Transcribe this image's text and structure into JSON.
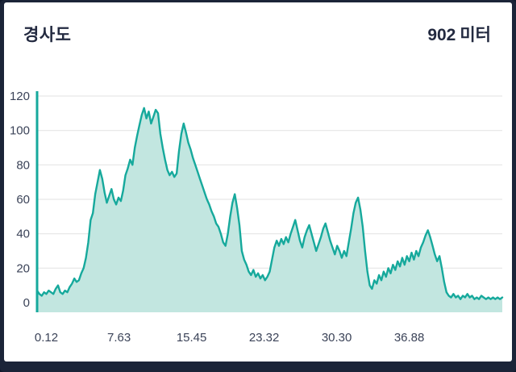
{
  "frame": {
    "border_color": "#1b2438",
    "card_background": "#ffffff"
  },
  "header": {
    "title": "경사도",
    "value": "902",
    "unit": "미터"
  },
  "chart_data": {
    "type": "area",
    "title": "경사도 (slope/elevation profile)",
    "xlabel": "",
    "ylabel": "",
    "legend": "none",
    "grid": "horizontal",
    "x_ticks": [
      "0.12",
      "7.63",
      "15.45",
      "23.32",
      "30.30",
      "36.88"
    ],
    "x_tick_positions": [
      0.02,
      0.176,
      0.332,
      0.488,
      0.644,
      0.8
    ],
    "y_ticks": [
      0,
      20,
      40,
      60,
      80,
      100,
      120
    ],
    "ylim": [
      0,
      120
    ],
    "line_color": "#16a99c",
    "fill_color": "#c2e6e0",
    "axis_color": "#16a99c",
    "grid_color": "#e2e2e2",
    "values": [
      7,
      5,
      4,
      6,
      5,
      7,
      6,
      5,
      8,
      10,
      6,
      5,
      7,
      6,
      9,
      11,
      14,
      12,
      13,
      17,
      20,
      26,
      35,
      48,
      52,
      63,
      70,
      77,
      72,
      64,
      58,
      62,
      66,
      60,
      57,
      61,
      59,
      65,
      74,
      78,
      83,
      80,
      90,
      97,
      103,
      109,
      113,
      107,
      111,
      104,
      108,
      112,
      110,
      98,
      90,
      83,
      77,
      74,
      76,
      73,
      75,
      88,
      98,
      104,
      99,
      93,
      89,
      84,
      80,
      76,
      72,
      68,
      64,
      60,
      57,
      53,
      50,
      46,
      44,
      40,
      35,
      33,
      40,
      50,
      58,
      63,
      55,
      45,
      30,
      25,
      22,
      18,
      16,
      19,
      15,
      17,
      14,
      16,
      13,
      15,
      18,
      25,
      32,
      36,
      33,
      37,
      34,
      38,
      35,
      40,
      44,
      48,
      42,
      36,
      32,
      38,
      42,
      45,
      40,
      35,
      30,
      34,
      38,
      43,
      46,
      41,
      36,
      32,
      28,
      33,
      30,
      26,
      30,
      27,
      35,
      43,
      52,
      58,
      61,
      54,
      44,
      30,
      18,
      10,
      8,
      13,
      11,
      16,
      13,
      18,
      15,
      20,
      17,
      22,
      19,
      24,
      21,
      26,
      22,
      27,
      24,
      29,
      25,
      30,
      27,
      32,
      35,
      39,
      42,
      38,
      33,
      28,
      24,
      27,
      20,
      12,
      6,
      4,
      3,
      5,
      3,
      4,
      2,
      4,
      3,
      5,
      3,
      4,
      2,
      3,
      2,
      4,
      3,
      2,
      3,
      2,
      3,
      2,
      3,
      2,
      3
    ]
  }
}
